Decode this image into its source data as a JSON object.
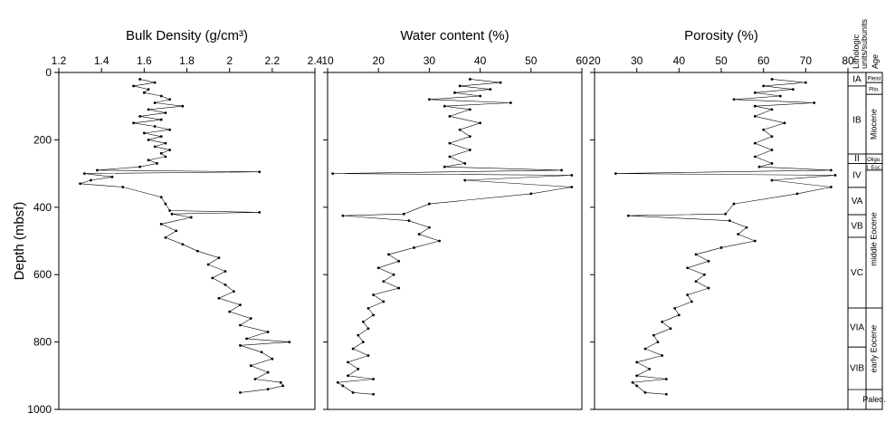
{
  "chart_data": [
    {
      "type": "profile",
      "title": "Bulk Density (g/cm³)",
      "ylabel": "Depth (mbsf)",
      "invert_y": true,
      "show_ytick_labels": true,
      "xlim": [
        1.2,
        2.4
      ],
      "xticks": [
        1.2,
        1.4,
        1.6,
        1.8,
        2,
        2.2,
        2.4
      ],
      "ylim": [
        0,
        1000
      ],
      "yticks": [
        0,
        200,
        400,
        600,
        800,
        1000
      ],
      "color": "#000000",
      "depth": [
        20,
        30,
        40,
        50,
        60,
        70,
        80,
        90,
        100,
        110,
        120,
        130,
        140,
        150,
        160,
        170,
        180,
        190,
        200,
        210,
        220,
        230,
        240,
        250,
        260,
        270,
        280,
        290,
        295,
        300,
        310,
        320,
        330,
        340,
        370,
        390,
        410,
        415,
        420,
        430,
        450,
        470,
        490,
        510,
        530,
        550,
        570,
        590,
        610,
        630,
        650,
        670,
        690,
        710,
        730,
        750,
        770,
        790,
        800,
        810,
        830,
        850,
        870,
        890,
        910,
        920,
        930,
        940,
        950
      ],
      "values": [
        1.58,
        1.65,
        1.55,
        1.62,
        1.6,
        1.68,
        1.72,
        1.65,
        1.78,
        1.62,
        1.7,
        1.58,
        1.68,
        1.55,
        1.65,
        1.72,
        1.6,
        1.68,
        1.62,
        1.7,
        1.65,
        1.72,
        1.68,
        1.7,
        1.62,
        1.66,
        1.58,
        1.38,
        2.14,
        1.32,
        1.45,
        1.35,
        1.3,
        1.5,
        1.68,
        1.7,
        1.72,
        2.14,
        1.73,
        1.82,
        1.68,
        1.75,
        1.7,
        1.78,
        1.85,
        1.95,
        1.9,
        1.98,
        1.92,
        1.98,
        2.02,
        1.95,
        2.05,
        2.0,
        2.1,
        2.05,
        2.18,
        2.08,
        2.28,
        2.05,
        2.15,
        2.2,
        2.1,
        2.18,
        2.12,
        2.24,
        2.25,
        2.18,
        2.05
      ]
    },
    {
      "type": "profile",
      "title": "Water content (%)",
      "invert_y": true,
      "show_ytick_labels": false,
      "xlim": [
        10,
        60
      ],
      "xticks": [
        10,
        20,
        30,
        40,
        50,
        60
      ],
      "ylim": [
        0,
        1000
      ],
      "yticks": [
        0,
        200,
        400,
        600,
        800,
        1000
      ],
      "color": "#000000",
      "depth": [
        20,
        30,
        40,
        50,
        60,
        70,
        80,
        90,
        100,
        110,
        130,
        150,
        170,
        190,
        210,
        230,
        250,
        270,
        280,
        290,
        300,
        305,
        320,
        340,
        360,
        390,
        420,
        425,
        440,
        460,
        480,
        500,
        520,
        540,
        560,
        580,
        600,
        620,
        640,
        660,
        680,
        700,
        720,
        740,
        760,
        780,
        800,
        820,
        840,
        860,
        880,
        900,
        910,
        920,
        930,
        950,
        955
      ],
      "values": [
        38,
        44,
        36,
        42,
        35,
        40,
        30,
        46,
        33,
        38,
        34,
        40,
        36,
        38,
        34,
        38,
        34,
        37,
        33,
        56,
        11,
        58,
        37,
        58,
        50,
        30,
        25,
        13,
        26,
        30,
        28,
        32,
        27,
        22,
        24,
        20,
        23,
        21,
        24,
        19,
        21,
        18,
        19,
        17,
        18,
        16,
        17,
        15,
        18,
        14,
        16,
        14,
        19,
        12,
        13,
        15,
        19
      ]
    },
    {
      "type": "profile",
      "title": "Porosity (%)",
      "invert_y": true,
      "show_ytick_labels": false,
      "xlim": [
        20,
        80
      ],
      "xticks": [
        20,
        30,
        40,
        50,
        60,
        70,
        80
      ],
      "ylim": [
        0,
        1000
      ],
      "yticks": [
        0,
        200,
        400,
        600,
        800,
        1000
      ],
      "color": "#000000",
      "depth": [
        20,
        30,
        40,
        50,
        60,
        70,
        80,
        90,
        100,
        110,
        130,
        150,
        170,
        190,
        210,
        230,
        250,
        270,
        280,
        290,
        300,
        305,
        320,
        340,
        360,
        390,
        420,
        425,
        440,
        460,
        480,
        500,
        520,
        540,
        560,
        580,
        600,
        620,
        640,
        660,
        680,
        700,
        720,
        740,
        760,
        780,
        800,
        820,
        840,
        860,
        880,
        900,
        910,
        920,
        930,
        950,
        955
      ],
      "values": [
        62,
        70,
        60,
        67,
        58,
        64,
        53,
        72,
        58,
        62,
        58,
        65,
        60,
        62,
        58,
        62,
        58,
        62,
        59,
        76,
        25,
        77,
        62,
        76,
        68,
        53,
        51,
        28,
        52,
        56,
        54,
        58,
        50,
        44,
        47,
        42,
        46,
        44,
        47,
        42,
        43,
        39,
        40,
        36,
        38,
        34,
        35,
        32,
        36,
        30,
        33,
        30,
        37,
        29,
        30,
        32,
        37
      ]
    }
  ],
  "lithology": {
    "header_units": [
      "Lithologic",
      "units/subunits"
    ],
    "header_age": "Age",
    "units": [
      {
        "label": "IA",
        "top": 0,
        "base": 40
      },
      {
        "label": "IB",
        "top": 40,
        "base": 242
      },
      {
        "label": "II",
        "top": 242,
        "base": 270
      },
      {
        "label": "IV",
        "top": 270,
        "base": 341
      },
      {
        "label": "VA",
        "top": 341,
        "base": 422
      },
      {
        "label": "VB",
        "top": 422,
        "base": 489
      },
      {
        "label": "VC",
        "top": 489,
        "base": 699
      },
      {
        "label": "VIA",
        "top": 699,
        "base": 815
      },
      {
        "label": "VIB",
        "top": 815,
        "base": 941
      }
    ],
    "ages": [
      {
        "label": "Pleist",
        "top": 0,
        "base": 30
      },
      {
        "label": "Plio.",
        "top": 30,
        "base": 65
      },
      {
        "label": "Miocene",
        "top": 65,
        "base": 242
      },
      {
        "label": "Oligo.",
        "top": 242,
        "base": 270
      },
      {
        "label": "l. Eoc.",
        "top": 270,
        "base": 290
      },
      {
        "label": "middle Eocene",
        "top": 290,
        "base": 699
      },
      {
        "label": "early Eocene",
        "top": 699,
        "base": 941
      },
      {
        "label": "Paleo.",
        "top": 941,
        "base": 1000
      }
    ]
  }
}
